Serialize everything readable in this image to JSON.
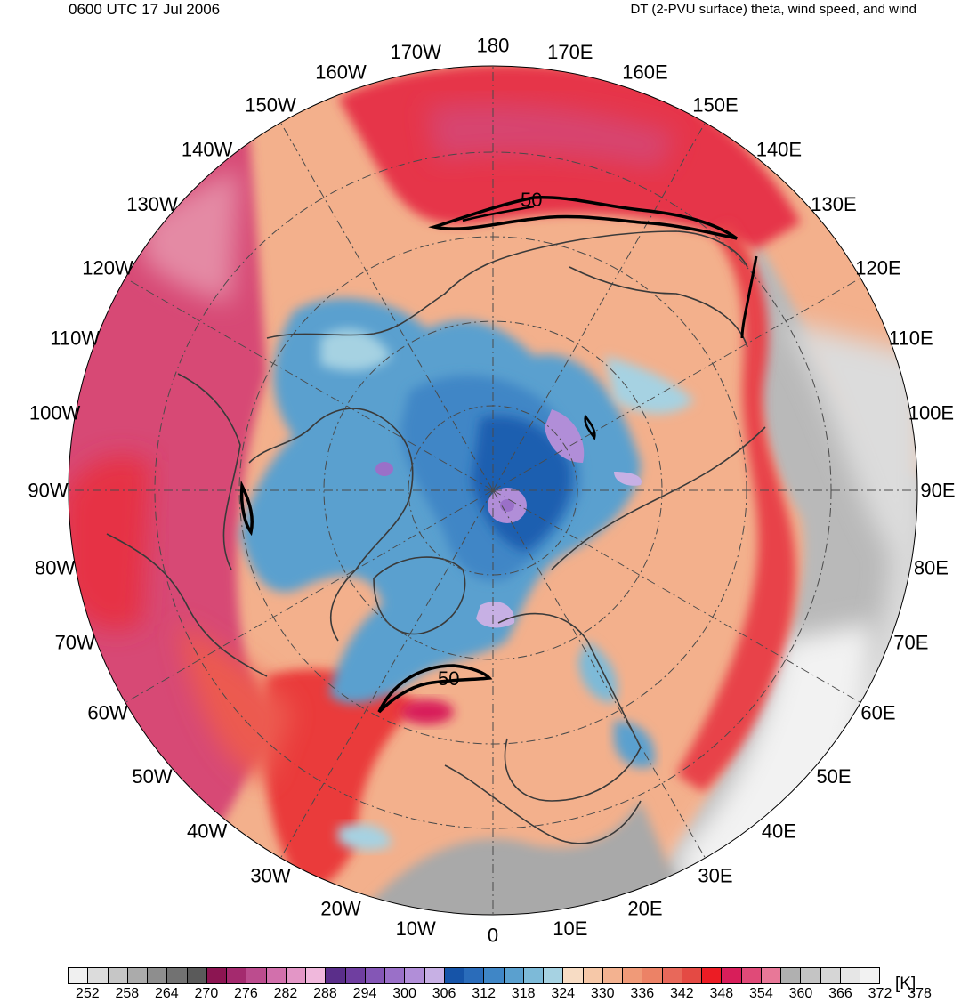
{
  "header": {
    "left": "0600 UTC 17 Jul 2006",
    "right": "DT (2-PVU surface) theta, wind speed, and wind"
  },
  "map": {
    "projection": "north-polar-stereographic",
    "longitude_labels": [
      "180",
      "170E",
      "160E",
      "150E",
      "140E",
      "130E",
      "120E",
      "110E",
      "100E",
      "90E",
      "80E",
      "70E",
      "60E",
      "50E",
      "40E",
      "30E",
      "20E",
      "10E",
      "0",
      "10W",
      "20W",
      "30W",
      "40W",
      "50W",
      "60W",
      "70W",
      "80W",
      "90W",
      "100W",
      "110W",
      "120W",
      "130W",
      "140W",
      "150W",
      "160W",
      "170W"
    ],
    "contour_labels": [
      "50",
      "50"
    ],
    "colors": {
      "cold_core": "#1f5fb0",
      "purple_core": "#b69ad8",
      "warm_field": "#f3a580",
      "jet_red": "#e8323a",
      "tropical_pink": "#d9406e",
      "outside_grey": "#a6a6a6",
      "coastline": "#3a3a3a"
    }
  },
  "legend": {
    "unit": "[K]",
    "tick_labels": [
      "252",
      "258",
      "264",
      "270",
      "276",
      "282",
      "288",
      "294",
      "300",
      "306",
      "312",
      "318",
      "324",
      "330",
      "336",
      "342",
      "348",
      "354",
      "360",
      "366",
      "372",
      "378"
    ],
    "colors": [
      "#f0f0f0",
      "#dcdcdc",
      "#c6c6c6",
      "#ababab",
      "#8e8e8e",
      "#727272",
      "#5a5a5a",
      "#8c1552",
      "#a42a6e",
      "#bc4c8e",
      "#d270ac",
      "#e396c6",
      "#f0b8dc",
      "#5a2e8a",
      "#6f3ea0",
      "#8456b6",
      "#9a70c8",
      "#b18ed8",
      "#c7b0e4",
      "#1654a8",
      "#2a6cba",
      "#3f86c6",
      "#5aa0cf",
      "#7dbad8",
      "#a6d2e2",
      "#f7dcc4",
      "#f6c8a8",
      "#f3b290",
      "#f09a78",
      "#ec8266",
      "#e8685a",
      "#e44a44",
      "#ec1c24",
      "#d81e5a",
      "#e04a78",
      "#e87898",
      "#b0b0b0",
      "#c4c4c4",
      "#d6d6d6",
      "#e6e6e6",
      "#f2f2f2"
    ]
  }
}
